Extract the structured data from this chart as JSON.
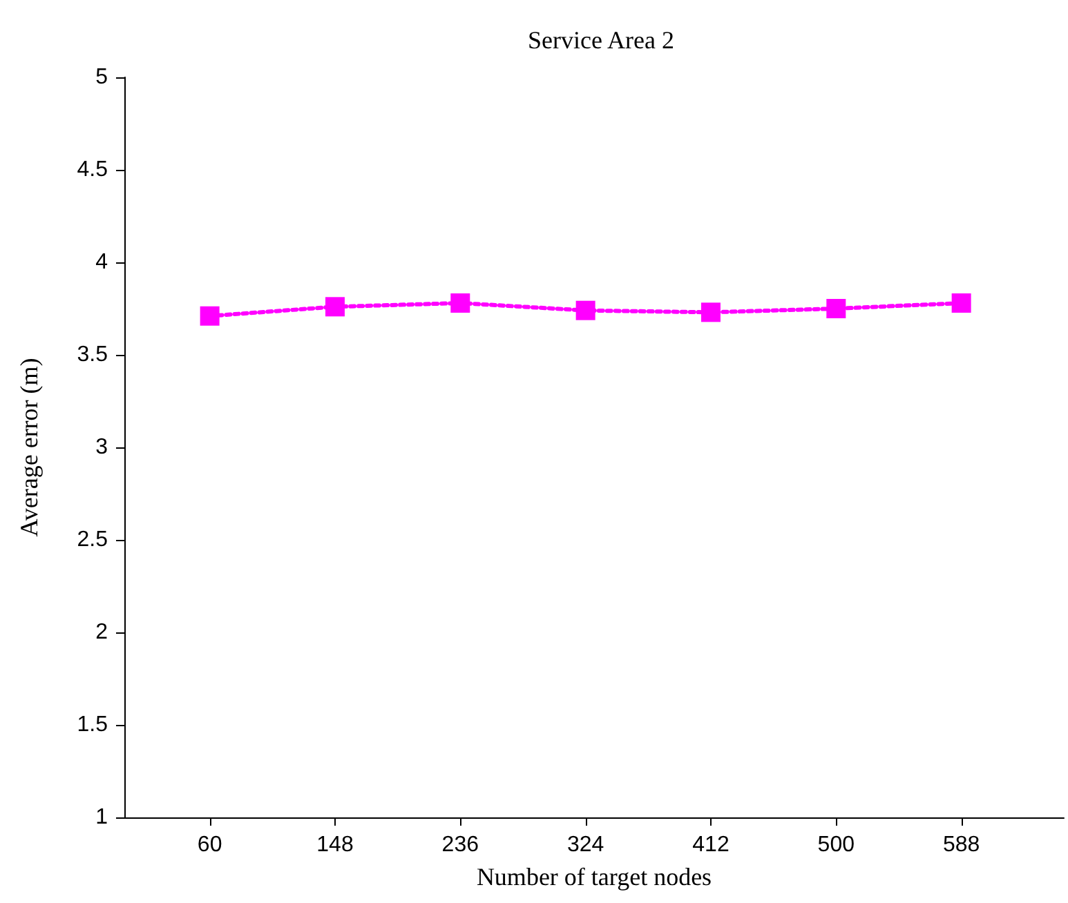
{
  "chart_data": {
    "type": "line",
    "title": "Service Area 2",
    "xlabel": "Number of target nodes",
    "ylabel": "Average error (m)",
    "x": [
      60,
      148,
      236,
      324,
      412,
      500,
      588
    ],
    "series": [
      {
        "color": "#ff00ff",
        "values": [
          3.71,
          3.76,
          3.78,
          3.74,
          3.73,
          3.75,
          3.78
        ]
      }
    ],
    "xlim": [
      0,
      660
    ],
    "xticks": [
      60,
      148,
      236,
      324,
      412,
      500,
      588
    ],
    "ylim": [
      1,
      5
    ],
    "yticks": [
      1,
      1.5,
      2,
      2.5,
      3,
      3.5,
      4,
      4.5,
      5
    ],
    "marker": "square",
    "line_style": "dotted",
    "grid": false
  }
}
